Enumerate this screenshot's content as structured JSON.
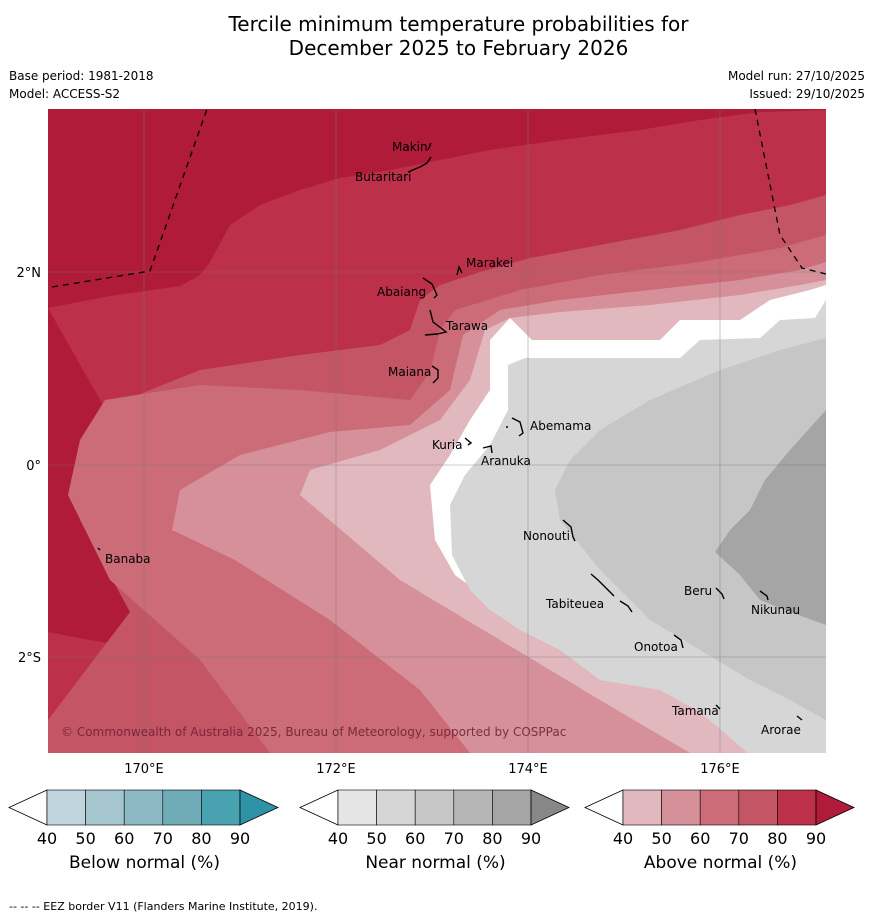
{
  "header": {
    "title_line1": "Tercile minimum temperature probabilities for",
    "title_line2": "December 2025 to February 2026",
    "base_period": "Base period: 1981-2018",
    "model": "Model: ACCESS-S2",
    "model_run": "Model run: 27/10/2025",
    "issued": "Issued: 29/10/2025"
  },
  "map": {
    "lat_labels": [
      "2°N",
      "0°",
      "2°S"
    ],
    "lon_labels": [
      "170°E",
      "172°E",
      "174°E",
      "176°E"
    ],
    "copyright": "© Commonwealth of Australia 2025, Bureau of Meteorology, supported by COSPPac",
    "islands": [
      "Makin",
      "Butaritari",
      "Marakei",
      "Abaiang",
      "Tarawa",
      "Maiana",
      "Abemama",
      "Kuria",
      "Aranuka",
      "Banaba",
      "Nonouti",
      "Tabiteuea",
      "Beru",
      "Nikunau",
      "Onotoa",
      "Tamana",
      "Arorae"
    ]
  },
  "colorbars": [
    {
      "label": "Below normal (%)",
      "ticks": [
        "40",
        "50",
        "60",
        "70",
        "80",
        "90"
      ],
      "colors": [
        "#bfd4dc",
        "#a5c6ce",
        "#8cb9c4",
        "#70abb8",
        "#48a2b0",
        "#2e93a5"
      ]
    },
    {
      "label": "Near normal (%)",
      "ticks": [
        "40",
        "50",
        "60",
        "70",
        "80",
        "90"
      ],
      "colors": [
        "#e5e5e5",
        "#d6d6d6",
        "#c6c6c6",
        "#b6b6b6",
        "#a5a5a5",
        "#878787"
      ]
    },
    {
      "label": "Above normal (%)",
      "ticks": [
        "40",
        "50",
        "60",
        "70",
        "80",
        "90"
      ],
      "colors": [
        "#e2b8bf",
        "#d6909a",
        "#cc6c78",
        "#c35565",
        "#bc3049",
        "#b11b3a"
      ]
    }
  ],
  "footnote": "--  --  -- EEZ border V11 (Flanders Marine Institute, 2019)."
}
